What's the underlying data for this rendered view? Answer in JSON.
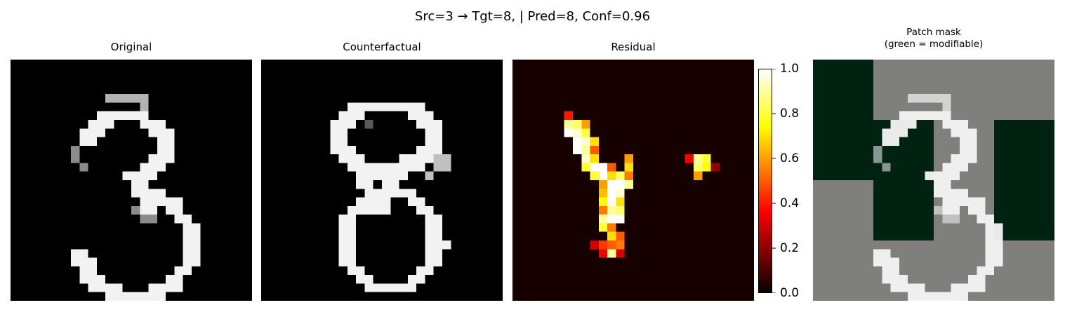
{
  "figure": {
    "suptitle": "Src=3 → Tgt=8, | Pred=8, Conf=0.96"
  },
  "panels": {
    "original_title": "Original",
    "counterfactual_title": "Counterfactual",
    "residual_title": "Residual",
    "mask_title_line1": "Patch mask",
    "mask_title_line2": "(green = modifiable)"
  },
  "chart_data": [
    {
      "type": "heatmap",
      "title": "Original",
      "colormap": "gray",
      "shape": [
        28,
        28
      ],
      "value_range": [
        0,
        1
      ],
      "description_values": "28x28 MNIST digit 3 in grayscale (approximate intensities)"
    },
    {
      "type": "heatmap",
      "title": "Counterfactual",
      "colormap": "gray",
      "shape": [
        28,
        28
      ],
      "value_range": [
        0,
        1
      ]
    },
    {
      "type": "heatmap",
      "title": "Residual",
      "colormap": "hot",
      "shape": [
        28,
        28
      ],
      "value_range": [
        0,
        1
      ],
      "colorbar": {
        "ticks": [
          "0.0",
          "0.2",
          "0.4",
          "0.6",
          "0.8",
          "1.0"
        ],
        "range": [
          0,
          1
        ]
      }
    },
    {
      "type": "heatmap",
      "title": "Patch mask (green = modifiable)",
      "patch_grid": [
        4,
        4
      ],
      "modifiable_patches": [
        [
          0,
          0
        ],
        [
          1,
          0
        ],
        [
          1,
          1
        ],
        [
          1,
          3
        ],
        [
          2,
          1
        ],
        [
          2,
          3
        ]
      ],
      "colors": {
        "modifiable": "#002210",
        "locked": "#7f807d"
      }
    }
  ]
}
